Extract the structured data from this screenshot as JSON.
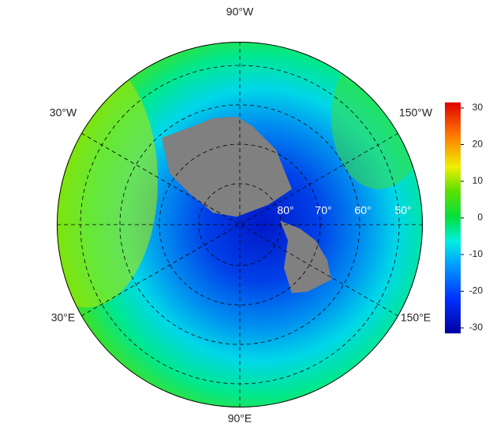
{
  "map": {
    "longitude_labels": [
      "90°W",
      "30°W",
      "150°W",
      "30°E",
      "150°E",
      "90°E"
    ],
    "latitude_labels": [
      "80°",
      "70°",
      "60°",
      "50°"
    ],
    "colorbar": {
      "lim": [
        -31.5,
        31.5
      ],
      "ticks": [
        30,
        20,
        10,
        0,
        -10,
        -20,
        -30
      ]
    }
  }
}
